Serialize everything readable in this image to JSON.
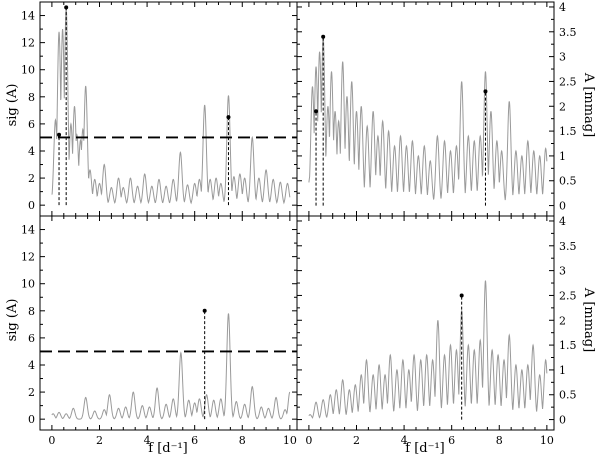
{
  "figure": {
    "left_ylabel": "sig (A)",
    "right_ylabel": "A [mmag]",
    "xlabel": "f [d⁻¹]"
  },
  "chart_data": [
    {
      "type": "line",
      "panel": "top-left",
      "xlim": [
        -0.5,
        10.3
      ],
      "ylim": [
        -0.8,
        15
      ],
      "xticks": [
        0,
        2,
        4,
        6,
        8,
        10
      ],
      "yticks": [
        0,
        2,
        4,
        6,
        8,
        10,
        12,
        14
      ],
      "tick_labels_y": "left",
      "threshold": 5,
      "series_color": "#9a9a9a",
      "peaks": [
        [
          0.05,
          1.0
        ],
        [
          0.15,
          6.3
        ],
        [
          0.2,
          4.8
        ],
        [
          0.3,
          12.8
        ],
        [
          0.45,
          13.0
        ],
        [
          0.6,
          14.6
        ],
        [
          0.8,
          6.0
        ],
        [
          0.95,
          7.3
        ],
        [
          1.05,
          5.2
        ],
        [
          1.2,
          4.8
        ],
        [
          1.3,
          5.6
        ],
        [
          1.42,
          8.8
        ],
        [
          1.6,
          2.6
        ],
        [
          1.8,
          1.9
        ],
        [
          2.0,
          1.6
        ],
        [
          2.2,
          3.0
        ],
        [
          2.5,
          1.3
        ],
        [
          2.8,
          2.0
        ],
        [
          3.0,
          1.3
        ],
        [
          3.3,
          2.0
        ],
        [
          3.6,
          1.4
        ],
        [
          3.9,
          2.3
        ],
        [
          4.2,
          1.4
        ],
        [
          4.5,
          1.9
        ],
        [
          4.8,
          1.4
        ],
        [
          5.1,
          1.9
        ],
        [
          5.4,
          3.9
        ],
        [
          5.7,
          1.5
        ],
        [
          6.0,
          1.6
        ],
        [
          6.2,
          1.9
        ],
        [
          6.42,
          7.4
        ],
        [
          6.65,
          1.9
        ],
        [
          6.9,
          2.0
        ],
        [
          7.1,
          1.6
        ],
        [
          7.42,
          8.1
        ],
        [
          7.65,
          2.1
        ],
        [
          7.9,
          2.3
        ],
        [
          8.1,
          2.0
        ],
        [
          8.42,
          5.0
        ],
        [
          8.7,
          2.0
        ],
        [
          9.0,
          2.6
        ],
        [
          9.3,
          1.9
        ],
        [
          9.6,
          1.7
        ],
        [
          9.9,
          1.6
        ]
      ],
      "markers": [
        {
          "x": 0.3,
          "y": 5.2
        },
        {
          "x": 0.6,
          "y": 14.6
        },
        {
          "x": 7.42,
          "y": 6.5
        }
      ]
    },
    {
      "type": "line",
      "panel": "top-right",
      "xlim": [
        -0.5,
        10.3
      ],
      "ylim": [
        -0.21,
        4.1
      ],
      "xticks": [
        0,
        2,
        4,
        6,
        8,
        10
      ],
      "yticks": [
        0,
        0.5,
        1,
        1.5,
        2,
        2.5,
        3,
        3.5,
        4
      ],
      "tick_labels_y": "right",
      "series_color": "#9a9a9a",
      "peaks": [
        [
          0.05,
          0.6
        ],
        [
          0.15,
          2.4
        ],
        [
          0.3,
          2.8
        ],
        [
          0.45,
          3.1
        ],
        [
          0.6,
          3.4
        ],
        [
          0.8,
          2.0
        ],
        [
          0.95,
          2.7
        ],
        [
          1.1,
          1.9
        ],
        [
          1.25,
          1.7
        ],
        [
          1.42,
          2.9
        ],
        [
          1.6,
          2.2
        ],
        [
          1.8,
          2.5
        ],
        [
          2.0,
          1.9
        ],
        [
          2.2,
          2.0
        ],
        [
          2.45,
          1.6
        ],
        [
          2.7,
          1.9
        ],
        [
          2.9,
          1.4
        ],
        [
          3.1,
          1.7
        ],
        [
          3.35,
          1.5
        ],
        [
          3.6,
          1.2
        ],
        [
          3.85,
          1.4
        ],
        [
          4.1,
          1.2
        ],
        [
          4.35,
          1.3
        ],
        [
          4.6,
          1.0
        ],
        [
          4.85,
          1.2
        ],
        [
          5.1,
          0.9
        ],
        [
          5.4,
          1.4
        ],
        [
          5.7,
          1.3
        ],
        [
          5.95,
          1.1
        ],
        [
          6.2,
          1.2
        ],
        [
          6.42,
          2.5
        ],
        [
          6.7,
          1.4
        ],
        [
          6.95,
          1.3
        ],
        [
          7.2,
          1.4
        ],
        [
          7.42,
          2.7
        ],
        [
          7.65,
          1.9
        ],
        [
          7.9,
          1.3
        ],
        [
          8.1,
          1.1
        ],
        [
          8.42,
          2.1
        ],
        [
          8.7,
          1.1
        ],
        [
          8.95,
          1.0
        ],
        [
          9.2,
          1.3
        ],
        [
          9.45,
          1.1
        ],
        [
          9.7,
          1.0
        ],
        [
          9.95,
          1.15
        ]
      ],
      "markers": [
        {
          "x": 0.3,
          "y": 1.9
        },
        {
          "x": 0.6,
          "y": 3.4
        },
        {
          "x": 7.42,
          "y": 2.3
        }
      ]
    },
    {
      "type": "line",
      "panel": "bottom-left",
      "xlim": [
        -0.5,
        10.3
      ],
      "ylim": [
        -0.8,
        15
      ],
      "xticks": [
        0,
        2,
        4,
        6,
        8,
        10
      ],
      "yticks": [
        0,
        2,
        4,
        6,
        8,
        10,
        12,
        14
      ],
      "tick_labels_y": "left",
      "threshold": 5,
      "series_color": "#9a9a9a",
      "peaks": [
        [
          0.05,
          0.4
        ],
        [
          0.3,
          0.5
        ],
        [
          0.6,
          0.4
        ],
        [
          0.9,
          0.8
        ],
        [
          1.42,
          1.6
        ],
        [
          1.8,
          0.6
        ],
        [
          2.2,
          0.7
        ],
        [
          2.42,
          1.8
        ],
        [
          2.8,
          0.8
        ],
        [
          3.1,
          0.9
        ],
        [
          3.42,
          2.0
        ],
        [
          3.8,
          1.0
        ],
        [
          4.1,
          0.9
        ],
        [
          4.42,
          2.3
        ],
        [
          4.8,
          1.1
        ],
        [
          5.1,
          1.5
        ],
        [
          5.42,
          4.9
        ],
        [
          5.75,
          1.4
        ],
        [
          6.0,
          1.2
        ],
        [
          6.2,
          1.5
        ],
        [
          6.5,
          1.8
        ],
        [
          6.8,
          1.4
        ],
        [
          7.1,
          1.5
        ],
        [
          7.42,
          7.8
        ],
        [
          7.75,
          1.3
        ],
        [
          8.1,
          1.1
        ],
        [
          8.42,
          2.4
        ],
        [
          8.8,
          0.9
        ],
        [
          9.1,
          0.8
        ],
        [
          9.42,
          1.6
        ],
        [
          9.8,
          0.7
        ],
        [
          10.0,
          2.0
        ]
      ],
      "markers": [
        {
          "x": 6.42,
          "y": 8.0
        }
      ]
    },
    {
      "type": "line",
      "panel": "bottom-right",
      "xlim": [
        -0.5,
        10.3
      ],
      "ylim": [
        -0.21,
        4.1
      ],
      "xticks": [
        0,
        2,
        4,
        6,
        8,
        10
      ],
      "yticks": [
        0,
        0.5,
        1,
        1.5,
        2,
        2.5,
        3,
        3.5,
        4
      ],
      "tick_labels_y": "right",
      "series_color": "#9a9a9a",
      "peaks": [
        [
          0.05,
          0.1
        ],
        [
          0.3,
          0.35
        ],
        [
          0.6,
          0.4
        ],
        [
          0.9,
          0.5
        ],
        [
          1.15,
          0.6
        ],
        [
          1.42,
          0.8
        ],
        [
          1.7,
          0.6
        ],
        [
          1.95,
          0.7
        ],
        [
          2.2,
          0.9
        ],
        [
          2.42,
          1.2
        ],
        [
          2.7,
          0.9
        ],
        [
          2.95,
          1.1
        ],
        [
          3.2,
          0.9
        ],
        [
          3.42,
          1.3
        ],
        [
          3.7,
          1.0
        ],
        [
          3.95,
          1.2
        ],
        [
          4.2,
          1.0
        ],
        [
          4.42,
          1.3
        ],
        [
          4.7,
          1.2
        ],
        [
          4.95,
          1.3
        ],
        [
          5.2,
          1.2
        ],
        [
          5.42,
          2.0
        ],
        [
          5.7,
          1.3
        ],
        [
          5.95,
          1.5
        ],
        [
          6.2,
          1.4
        ],
        [
          6.42,
          2.2
        ],
        [
          6.7,
          1.5
        ],
        [
          6.95,
          1.4
        ],
        [
          7.2,
          1.6
        ],
        [
          7.42,
          2.8
        ],
        [
          7.7,
          1.4
        ],
        [
          7.95,
          1.3
        ],
        [
          8.2,
          1.2
        ],
        [
          8.42,
          1.7
        ],
        [
          8.7,
          1.1
        ],
        [
          8.95,
          1.0
        ],
        [
          9.2,
          1.1
        ],
        [
          9.42,
          1.5
        ],
        [
          9.7,
          0.9
        ],
        [
          9.95,
          1.2
        ]
      ],
      "markers": [
        {
          "x": 6.42,
          "y": 2.5
        }
      ]
    }
  ]
}
